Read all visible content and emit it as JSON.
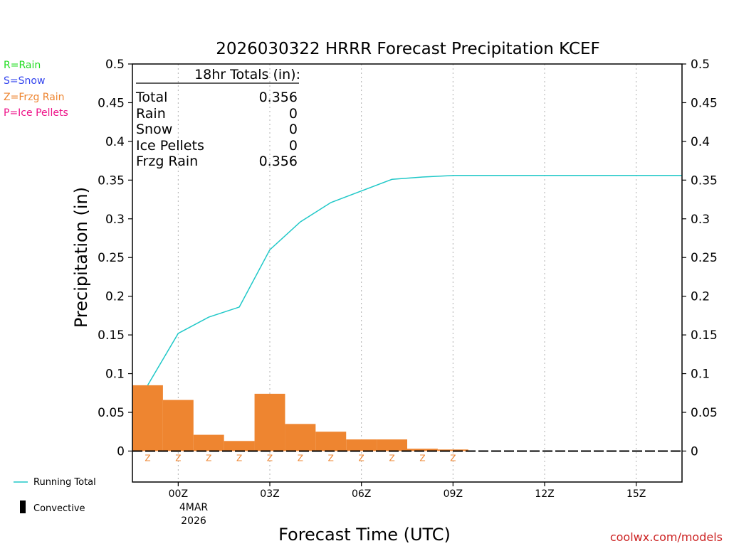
{
  "chart_data": {
    "type": "bar",
    "title": "2026030322 HRRR Forecast Precipitation KCEF",
    "xlabel": "Forecast Time (UTC)",
    "ylabel": "Precipitation (in)",
    "ylim": [
      -0.04,
      0.5
    ],
    "xlim": [
      -1.5,
      16.5
    ],
    "y_ticks": [
      "0",
      "0.05",
      "0.1",
      "0.15",
      "0.2",
      "0.25",
      "0.3",
      "0.35",
      "0.4",
      "0.45",
      "0.5"
    ],
    "y_tick_values": [
      0,
      0.05,
      0.1,
      0.15,
      0.2,
      0.25,
      0.3,
      0.35,
      0.4,
      0.45,
      0.5
    ],
    "x_ticks": [
      {
        "hour": 0,
        "label": "00Z"
      },
      {
        "hour": 3,
        "label": "03Z"
      },
      {
        "hour": 6,
        "label": "06Z"
      },
      {
        "hour": 9,
        "label": "09Z"
      },
      {
        "hour": 12,
        "label": "12Z"
      },
      {
        "hour": 15,
        "label": "15Z"
      }
    ],
    "date_line1": "4MAR",
    "date_line2": "2026",
    "hours": [
      -1,
      0,
      1,
      2,
      3,
      4,
      5,
      6,
      7,
      8,
      9,
      10,
      11,
      12,
      13,
      14,
      15,
      16
    ],
    "series": [
      {
        "name": "Frzg Rain",
        "type": "bar",
        "color": "#ee8530",
        "values": [
          0.085,
          0.066,
          0.021,
          0.013,
          0.074,
          0.035,
          0.025,
          0.015,
          0.015,
          0.003,
          0.002,
          0,
          0,
          0,
          0,
          0,
          0,
          0
        ]
      },
      {
        "name": "Running Total",
        "type": "line",
        "color": "#20c8c8",
        "x": [
          -1,
          0,
          1,
          2,
          3,
          4,
          5,
          6,
          7,
          8,
          9,
          10,
          11,
          12,
          13,
          14,
          15,
          16.5
        ],
        "values": [
          0.085,
          0.152,
          0.173,
          0.186,
          0.26,
          0.296,
          0.321,
          0.336,
          0.351,
          0.354,
          0.356,
          0.356,
          0.356,
          0.356,
          0.356,
          0.356,
          0.356,
          0.356
        ]
      }
    ],
    "ptype_markers": {
      "symbol": "Z",
      "color": "#ee8530",
      "hours": [
        -1,
        0,
        1,
        2,
        3,
        4,
        5,
        6,
        7,
        8,
        9
      ]
    },
    "totals_box": {
      "header": "18hr Totals (in):",
      "rows": [
        {
          "label": "Total",
          "value": "0.356"
        },
        {
          "label": "Rain",
          "value": "0"
        },
        {
          "label": "Snow",
          "value": "0"
        },
        {
          "label": "Ice Pellets",
          "value": "0"
        },
        {
          "label": "Frzg Rain",
          "value": "0.356"
        }
      ]
    },
    "ptype_legend": [
      {
        "text": "R=Rain",
        "color": "#22dd22"
      },
      {
        "text": "S=Snow",
        "color": "#3344ee"
      },
      {
        "text": "Z=Frzg Rain",
        "color": "#ee8530"
      },
      {
        "text": "P=Ice Pellets",
        "color": "#ee1188"
      }
    ],
    "bottom_legend": {
      "running_total": "Running Total",
      "convective": "Convective"
    },
    "credit": "coolwx.com/models"
  }
}
